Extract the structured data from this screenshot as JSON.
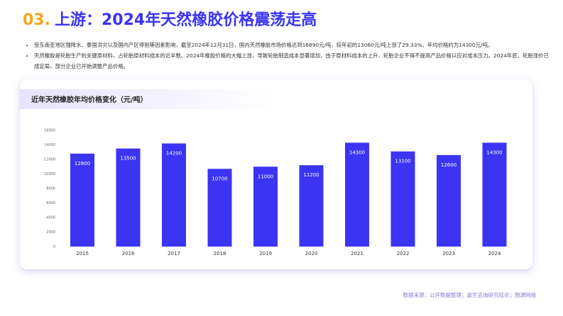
{
  "header": {
    "number": "03.",
    "title": "上游：2024年天然橡胶价格震荡走高"
  },
  "bullets": [
    "受东南亚地区强降水、泰国洪灾以及国内产区停割等因素影响，截至2024年12月31日，国内天然橡胶市场价格达到16890元/吨，较年初的13060元/吨上涨了29.33%，年均价格约为14300元/吨。",
    "天然橡胶是轮胎生产的关键原材料，占轮胎原材料成本的近半数。2024年橡胶价格的大幅上涨，导致轮胎制造成本显著增加，由于原材料成本的上升，轮胎企业不得不提高产品价格以应对成本压力。2024年底，轮胎涨价已成定局，部分企业已开始调整产品价格。"
  ],
  "chart_data": {
    "type": "bar",
    "title": "近年天然橡胶年均价格变化（元/吨）",
    "categories": [
      "2015",
      "2016",
      "2017",
      "2018",
      "2019",
      "2020",
      "2021",
      "2022",
      "2023",
      "2024"
    ],
    "values": [
      12800,
      13500,
      14200,
      10700,
      11000,
      11200,
      14300,
      13100,
      12600,
      14300
    ],
    "color": "#3b34f2",
    "ylim": [
      0,
      16000
    ],
    "yticks": [
      0,
      2000,
      4000,
      6000,
      8000,
      10000,
      12000,
      14000,
      16000
    ],
    "grid": false
  },
  "source": "数据来源：公开数据整理；嘉世咨询研究结论；图源网络"
}
